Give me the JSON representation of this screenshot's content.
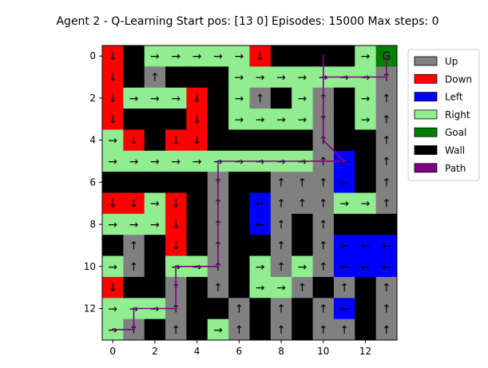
{
  "chart_data": {
    "type": "heatmap",
    "title": "Agent 2 - Q-Learning  Start pos: [13  0]  Episodes: 15000  Max steps: 0",
    "rows": 14,
    "cols": 14,
    "x_ticks": [
      0,
      2,
      4,
      6,
      8,
      10,
      12
    ],
    "y_ticks": [
      0,
      2,
      4,
      6,
      8,
      10,
      12
    ],
    "grid": false,
    "legend_position": "outside-right",
    "legend": [
      {
        "key": "U",
        "label": "Up",
        "color": "#808080"
      },
      {
        "key": "D",
        "label": "Down",
        "color": "#ff0000"
      },
      {
        "key": "L",
        "label": "Left",
        "color": "#0000ff"
      },
      {
        "key": "R",
        "label": "Right",
        "color": "#90ee90"
      },
      {
        "key": "G",
        "label": "Goal",
        "color": "#008000"
      },
      {
        "key": "W",
        "label": "Wall",
        "color": "#000000"
      },
      {
        "key": "P",
        "label": "Path",
        "color": "#800080"
      }
    ],
    "arrows": {
      "U": "↑",
      "D": "↓",
      "L": "←",
      "R": "→"
    },
    "goal_label": "G",
    "grid_cells": [
      "DWRRRRRDWWWWRG",
      "DWUWWWRRRRRRRU",
      "DRRRDWRUWRUWRU",
      "DWWWDWRRRRUWRU",
      "RDWDDWWWWWUWWU",
      "RRRRRRRRRRULWU",
      "WWWWWUWWUUULWU",
      "DDRDWUWLUUURRU",
      "RRRDWUWLUWUWWW",
      "WUWDWUWWUWULLL",
      "RUWRRUWRURULLL",
      "DWWUWUWRRUWUWU",
      "RRRUWWUWUWULWU",
      "RUWUWRUWUWUUWU"
    ],
    "path": [
      [
        13,
        0
      ],
      [
        13,
        1
      ],
      [
        12,
        1
      ],
      [
        12,
        2
      ],
      [
        12,
        3
      ],
      [
        11,
        3
      ],
      [
        10,
        3
      ],
      [
        10,
        4
      ],
      [
        10,
        5
      ],
      [
        9,
        5
      ],
      [
        8,
        5
      ],
      [
        7,
        5
      ],
      [
        6,
        5
      ],
      [
        5,
        5
      ],
      [
        5,
        6
      ],
      [
        5,
        7
      ],
      [
        5,
        8
      ],
      [
        5,
        9
      ],
      [
        5,
        10
      ],
      [
        5,
        11
      ],
      [
        4,
        10
      ],
      [
        3,
        10
      ],
      [
        2,
        10
      ],
      [
        1,
        10
      ],
      [
        0,
        10
      ],
      [
        1,
        10
      ],
      [
        1,
        11
      ],
      [
        1,
        12
      ],
      [
        1,
        13
      ],
      [
        0,
        13
      ]
    ]
  }
}
